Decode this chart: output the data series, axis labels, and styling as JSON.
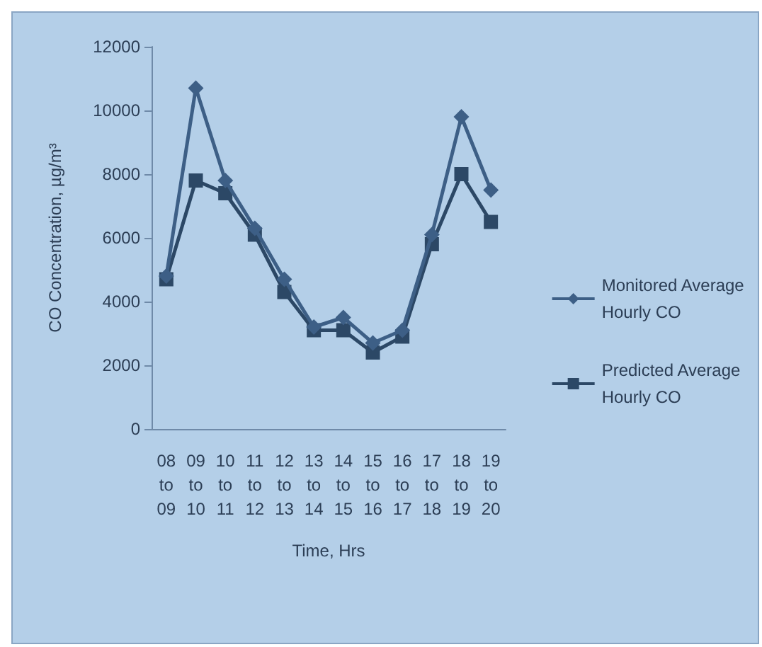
{
  "chart_data": {
    "type": "line",
    "xlabel": "Time, Hrs",
    "ylabel": "CO Concentration, µg/m³",
    "categories": [
      "08\nto\n09",
      "09\nto\n10",
      "10\nto\n11",
      "11\nto\n12",
      "12\nto\n13",
      "13\nto\n14",
      "14\nto\n15",
      "15\nto\n16",
      "16\nto\n17",
      "17\nto\n18",
      "18\nto\n19",
      "19\nto\n20"
    ],
    "series": [
      {
        "name": "Monitored Average\nHourly CO",
        "color": "#3d5f86",
        "marker": "diamond",
        "values": [
          4800,
          10700,
          7800,
          6300,
          4700,
          3200,
          3500,
          2700,
          3100,
          6100,
          9800,
          7500
        ]
      },
      {
        "name": "Predicted Average\nHourly CO",
        "color": "#2c4866",
        "marker": "square",
        "values": [
          4700,
          7800,
          7400,
          6100,
          4300,
          3100,
          3100,
          2400,
          2900,
          5800,
          8000,
          6500
        ]
      }
    ],
    "ylim": [
      0,
      12000
    ],
    "yticks": [
      0,
      2000,
      4000,
      6000,
      8000,
      10000,
      12000
    ],
    "grid": false,
    "legend": "right"
  }
}
